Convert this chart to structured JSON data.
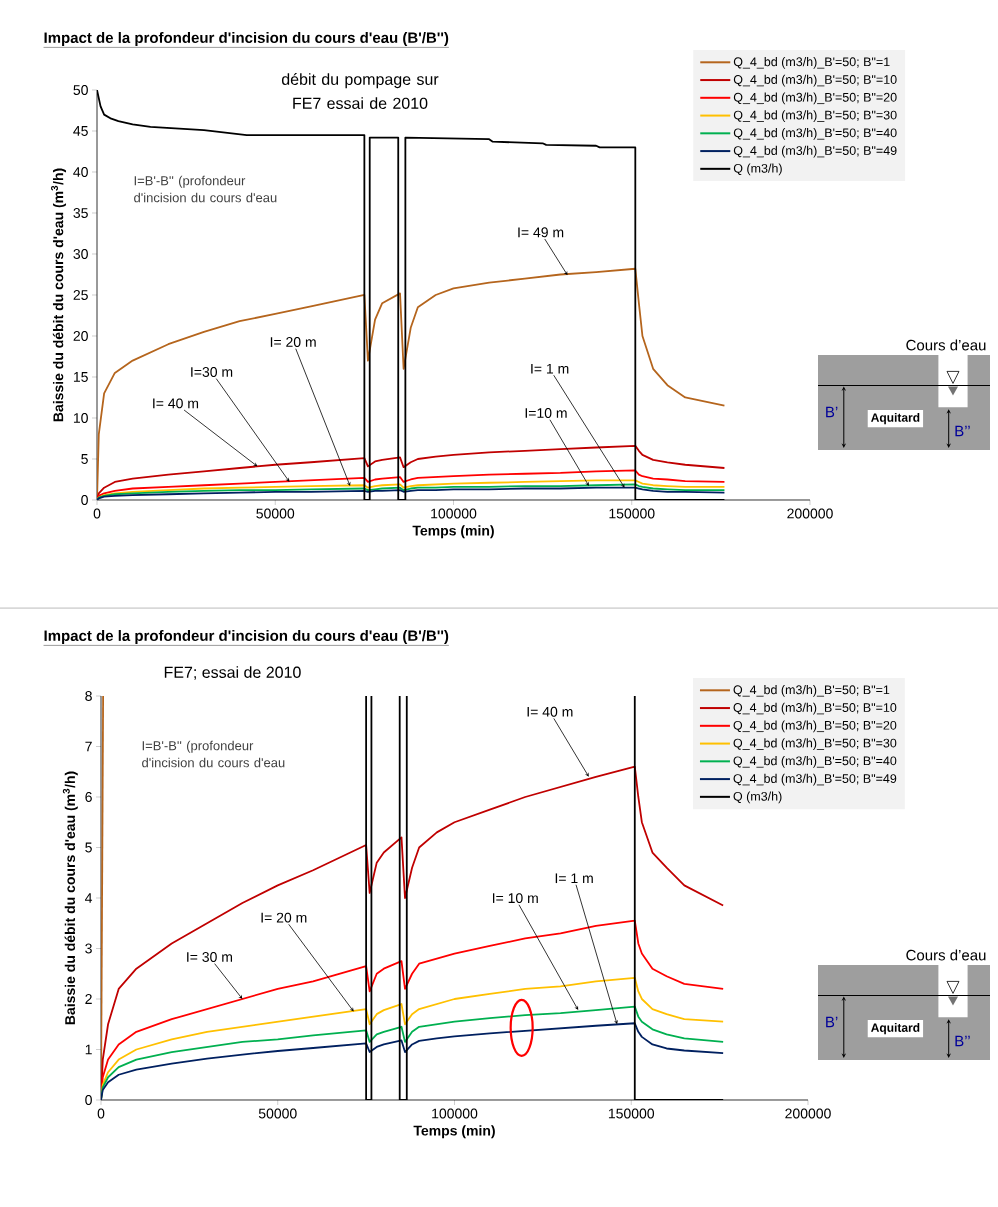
{
  "chart_data": [
    {
      "type": "line",
      "title": "Impact de la profondeur d'incision du cours d'eau (B'/B'')",
      "subtitle": "débit du pompage sur FE7 essai de 2010",
      "xlabel": "Temps (min)",
      "ylabel": "Baissie du débit  du cours d'eau (m$^{3}$/h)",
      "x": [
        0,
        500,
        2000,
        5000,
        10000,
        20000,
        30000,
        40000,
        50000,
        60000,
        75000,
        76000,
        78000,
        80000,
        85000,
        86000,
        88000,
        90000,
        95000,
        100000,
        110000,
        120000,
        130000,
        140000,
        151000,
        152000,
        153000,
        156000,
        160000,
        165000,
        176000
      ],
      "series": [
        {
          "name": "Q_4_bd (m3/h)_B'=50; B\"=1",
          "color": "#b5651d",
          "values": [
            0,
            8,
            13,
            15.5,
            17,
            19,
            20.5,
            21.8,
            22.7,
            23.6,
            25.0,
            17,
            22,
            24,
            25.2,
            16,
            21,
            23.5,
            25,
            25.8,
            26.5,
            27,
            27.5,
            27.8,
            28.2,
            24,
            20,
            16,
            14,
            12.5,
            11.5
          ]
        },
        {
          "name": "Q_4_bd (m3/h)_B'=50; B\"=10",
          "color": "#c00000",
          "values": [
            0,
            0.8,
            1.5,
            2.2,
            2.6,
            3.1,
            3.5,
            3.9,
            4.3,
            4.6,
            5.1,
            4.1,
            4.7,
            4.9,
            5.2,
            4.0,
            4.6,
            5.0,
            5.3,
            5.5,
            5.8,
            6.0,
            6.2,
            6.4,
            6.6,
            6.0,
            5.5,
            4.9,
            4.6,
            4.3,
            3.9
          ]
        },
        {
          "name": "Q_4_bd (m3/h)_B'=50; B\"=20",
          "color": "#ff0000",
          "values": [
            0,
            0.5,
            0.8,
            1.1,
            1.4,
            1.6,
            1.8,
            2.0,
            2.2,
            2.4,
            2.7,
            2.2,
            2.5,
            2.6,
            2.8,
            2.2,
            2.5,
            2.7,
            2.8,
            2.9,
            3.1,
            3.2,
            3.3,
            3.5,
            3.6,
            3.1,
            2.9,
            2.6,
            2.5,
            2.3,
            2.2
          ]
        },
        {
          "name": "Q_4_bd (m3/h)_B'=50; B\"=30",
          "color": "#ffc000",
          "values": [
            0,
            0.3,
            0.6,
            0.8,
            1.0,
            1.2,
            1.4,
            1.5,
            1.6,
            1.7,
            1.8,
            1.5,
            1.7,
            1.8,
            1.9,
            1.5,
            1.7,
            1.8,
            1.9,
            2.0,
            2.1,
            2.2,
            2.3,
            2.4,
            2.4,
            2.2,
            2.0,
            1.8,
            1.7,
            1.6,
            1.6
          ]
        },
        {
          "name": "Q_4_bd (m3/h)_B'=50; B\"=40",
          "color": "#00b050",
          "values": [
            0,
            0.3,
            0.5,
            0.7,
            0.8,
            1.0,
            1.1,
            1.2,
            1.2,
            1.3,
            1.4,
            1.2,
            1.3,
            1.4,
            1.5,
            1.2,
            1.4,
            1.5,
            1.5,
            1.6,
            1.6,
            1.7,
            1.7,
            1.8,
            1.9,
            1.7,
            1.6,
            1.4,
            1.3,
            1.2,
            1.2
          ]
        },
        {
          "name": "Q_4_bd (m3/h)_B'=50; B\"=49",
          "color": "#002060",
          "values": [
            0,
            0.2,
            0.4,
            0.5,
            0.6,
            0.7,
            0.8,
            0.9,
            1.0,
            1.0,
            1.1,
            1.0,
            1.1,
            1.1,
            1.2,
            1.0,
            1.1,
            1.2,
            1.2,
            1.3,
            1.3,
            1.4,
            1.4,
            1.5,
            1.5,
            1.4,
            1.3,
            1.1,
            1.0,
            1.0,
            0.9
          ]
        },
        {
          "name": "Q (m3/h)",
          "color": "#000000",
          "x": [
            0,
            1000,
            2000,
            4000,
            6000,
            10000,
            15000,
            30000,
            42000,
            75000,
            75000,
            76500,
            76500,
            84500,
            84500,
            86500,
            86500,
            110000,
            111000,
            125000,
            126000,
            140000,
            141000,
            151000,
            151000,
            176000
          ],
          "values": [
            50,
            48,
            47,
            46.5,
            46.2,
            45.8,
            45.5,
            45.1,
            44.5,
            44.5,
            0,
            0,
            44.2,
            44.2,
            0,
            0,
            44.2,
            44,
            43.7,
            43.5,
            43.3,
            43.2,
            43,
            43,
            0,
            0
          ]
        }
      ],
      "xlim": [
        0,
        200000
      ],
      "ylim": [
        0,
        50
      ],
      "xticks": [
        0,
        50000,
        100000,
        150000,
        200000
      ],
      "yticks": [
        0,
        5,
        10,
        15,
        20,
        25,
        30,
        35,
        40,
        45,
        50
      ],
      "grid": false,
      "legend": "top right",
      "marker": "none",
      "line_style": "solid",
      "annotations": [
        "I=B'-B'' (profondeur d'incision du cours d'eau",
        {
          "text": "I= 49 m",
          "x": 132000,
          "y": 27.4
        },
        {
          "text": "I= 20 m",
          "x": 71000,
          "y": 1.7
        },
        {
          "text": "I=30 m",
          "x": 54000,
          "y": 2.2
        },
        {
          "text": "I= 40 m",
          "x": 45000,
          "y": 4.1
        },
        {
          "text": "I= 1 m",
          "x": 148000,
          "y": 1.5
        },
        {
          "text": "I=10 m",
          "x": 138000,
          "y": 1.7
        },
        "Cours d’eau",
        "Aquitard",
        "B’",
        "B’’"
      ]
    },
    {
      "type": "line",
      "title": "Impact de la profondeur d'incision du cours d'eau (B'/B'')",
      "subtitle": "FE7; essai de 2010",
      "xlabel": "Temps (min)",
      "ylabel": "Baissie du débit  du cours d'eau (m$^{3}$/h)",
      "x": [
        0,
        500,
        2000,
        5000,
        10000,
        20000,
        30000,
        40000,
        50000,
        60000,
        75000,
        76000,
        78000,
        80000,
        85000,
        86000,
        88000,
        90000,
        95000,
        100000,
        110000,
        120000,
        130000,
        140000,
        151000,
        152000,
        153000,
        156000,
        160000,
        165000,
        176000
      ],
      "series": [
        {
          "name": "Q_4_bd (m3/h)_B'=50; B\"=1",
          "color": "#b5651d",
          "x": [
            0,
            600
          ],
          "values": [
            0,
            8
          ]
        },
        {
          "name": "Q_4_bd (m3/h)_B'=50; B\"=10",
          "color": "#c00000",
          "values": [
            0,
            0.8,
            1.5,
            2.2,
            2.6,
            3.1,
            3.5,
            3.9,
            4.25,
            4.55,
            5.05,
            4.1,
            4.7,
            4.9,
            5.2,
            4.0,
            4.6,
            5.0,
            5.3,
            5.5,
            5.75,
            6.0,
            6.2,
            6.4,
            6.6,
            6.0,
            5.5,
            4.9,
            4.6,
            4.25,
            3.85
          ]
        },
        {
          "name": "Q_4_bd (m3/h)_B'=50; B\"=20",
          "color": "#ff0000",
          "values": [
            0,
            0.45,
            0.8,
            1.1,
            1.35,
            1.6,
            1.8,
            2.0,
            2.2,
            2.35,
            2.65,
            2.15,
            2.5,
            2.6,
            2.75,
            2.2,
            2.5,
            2.7,
            2.8,
            2.9,
            3.05,
            3.2,
            3.3,
            3.45,
            3.55,
            3.1,
            2.9,
            2.6,
            2.45,
            2.3,
            2.2
          ]
        },
        {
          "name": "Q_4_bd (m3/h)_B'=50; B\"=30",
          "color": "#ffc000",
          "values": [
            0,
            0.3,
            0.55,
            0.8,
            1.0,
            1.2,
            1.35,
            1.45,
            1.55,
            1.65,
            1.8,
            1.5,
            1.7,
            1.78,
            1.9,
            1.5,
            1.7,
            1.8,
            1.9,
            2.0,
            2.1,
            2.2,
            2.25,
            2.35,
            2.42,
            2.15,
            2.0,
            1.8,
            1.7,
            1.6,
            1.55
          ]
        },
        {
          "name": "Q_4_bd (m3/h)_B'=50; B\"=40",
          "color": "#00b050",
          "values": [
            0,
            0.25,
            0.45,
            0.65,
            0.8,
            0.95,
            1.05,
            1.15,
            1.2,
            1.28,
            1.38,
            1.15,
            1.3,
            1.35,
            1.45,
            1.15,
            1.35,
            1.45,
            1.5,
            1.55,
            1.62,
            1.68,
            1.72,
            1.78,
            1.85,
            1.65,
            1.55,
            1.4,
            1.3,
            1.22,
            1.15
          ]
        },
        {
          "name": "Q_4_bd (m3/h)_B'=50; B\"=49",
          "color": "#002060",
          "values": [
            0,
            0.2,
            0.35,
            0.5,
            0.6,
            0.72,
            0.82,
            0.9,
            0.97,
            1.03,
            1.12,
            0.95,
            1.05,
            1.1,
            1.18,
            0.95,
            1.1,
            1.17,
            1.22,
            1.26,
            1.32,
            1.37,
            1.42,
            1.47,
            1.52,
            1.35,
            1.25,
            1.1,
            1.02,
            0.98,
            0.93
          ]
        },
        {
          "name": "Q (m3/h)",
          "color": "#000000",
          "x": [
            75000,
            75000,
            76500,
            76500,
            80000,
            84500,
            84500,
            86500,
            86500,
            120000,
            151000,
            151000,
            176000
          ],
          "values": [
            8,
            0,
            0,
            8,
            null,
            8,
            0,
            0,
            8,
            null,
            8,
            0,
            0
          ]
        }
      ],
      "xlim": [
        0,
        200000
      ],
      "ylim": [
        0,
        8
      ],
      "xticks": [
        0,
        50000,
        100000,
        150000,
        200000
      ],
      "yticks": [
        0,
        1,
        2,
        3,
        4,
        5,
        6,
        7,
        8
      ],
      "grid": false,
      "legend": "top right",
      "marker": "none",
      "line_style": "solid",
      "annotations": [
        "I=B'-B'' (profondeur d'incision du cours d'eau",
        {
          "text": "I= 40 m",
          "x": 138000,
          "y": 6.4
        },
        {
          "text": "I= 30 m",
          "x": 40000,
          "y": 2.0
        },
        {
          "text": "I= 20 m",
          "x": 71500,
          "y": 1.75
        },
        {
          "text": "I= 10 m",
          "x": 135000,
          "y": 1.78
        },
        {
          "text": "I= 1 m",
          "x": 146000,
          "y": 1.5
        },
        "Cours d’eau",
        "Aquitard",
        "B’",
        "B’’"
      ]
    }
  ]
}
